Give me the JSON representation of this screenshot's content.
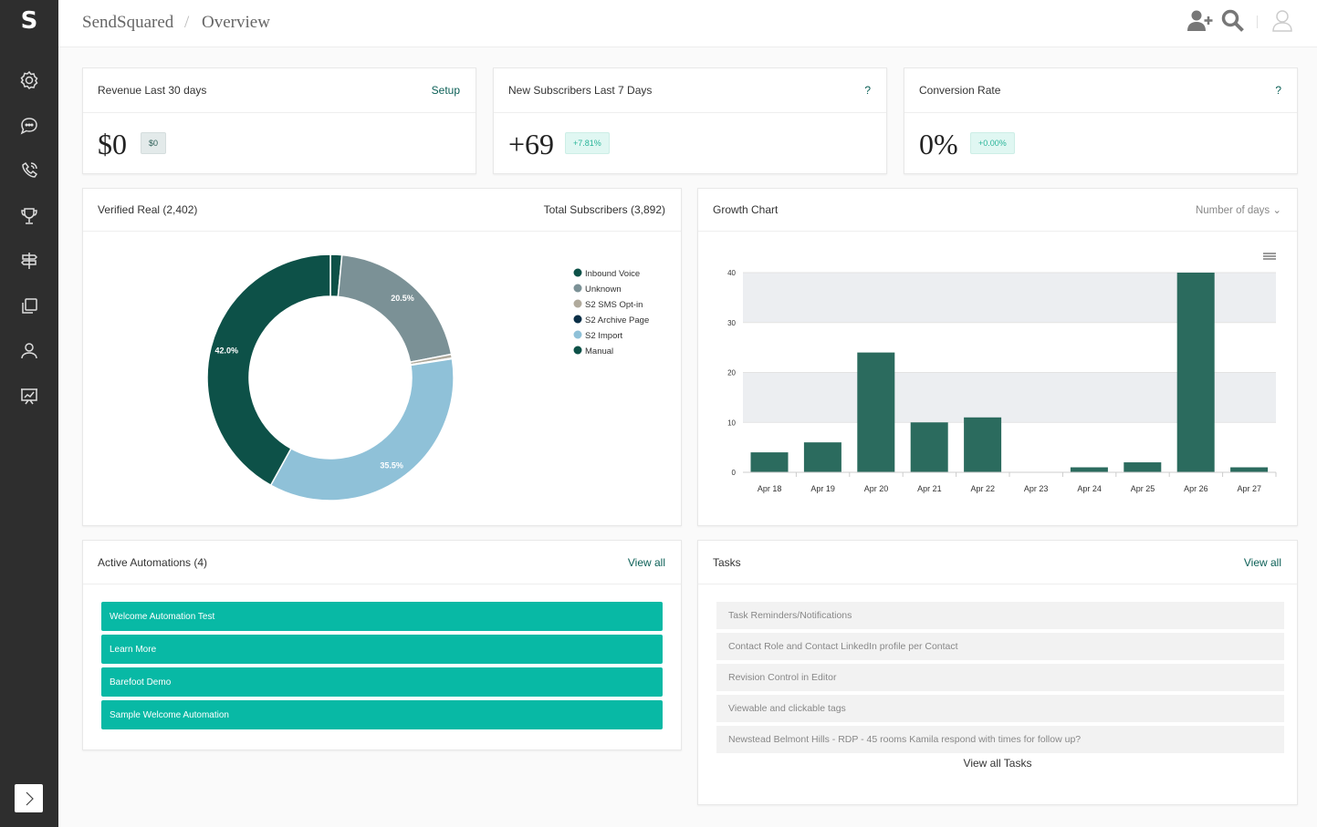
{
  "app": {
    "logo": "S",
    "brand": "SendSquared",
    "page": "Overview"
  },
  "header": {
    "icons": [
      "add-user-icon",
      "search-icon",
      "user-avatar-icon"
    ]
  },
  "sidebar": {
    "icons": [
      "gear-icon",
      "chat-icon",
      "phone-icon",
      "trophy-icon",
      "signpost-icon",
      "copy-icon",
      "user-icon",
      "presentation-chart-icon"
    ],
    "expand": "chevron-right-icon"
  },
  "stats": [
    {
      "title": "Revenue Last 30 days",
      "action": "Setup",
      "value": "$0",
      "badge": "$0"
    },
    {
      "title": "New Subscribers Last 7 Days",
      "action": "?",
      "value": "+69",
      "badge": "+7.81%"
    },
    {
      "title": "Conversion Rate",
      "action": "?",
      "value": "0%",
      "badge": "+0.00%"
    }
  ],
  "donut": {
    "title": "Verified Real (2,402)",
    "right": "Total Subscribers (3,892)"
  },
  "growth": {
    "title": "Growth Chart",
    "select": "Number of days"
  },
  "chart_data": [
    {
      "type": "pie",
      "subtype": "donut",
      "legend": "top-right",
      "labels": [
        "Inbound Voice",
        "Unknown",
        "S2 SMS Opt-in",
        "S2 Archive Page",
        "S2 Import",
        "Manual"
      ],
      "values": [
        1.5,
        20.5,
        0.5,
        0.1,
        35.5,
        42.0
      ],
      "data_labels": [
        "",
        "20.5%",
        "",
        "",
        "35.5%",
        "42.0%"
      ],
      "colors": [
        "#0d5148",
        "#7b9196",
        "#b0aa9c",
        "#0b2f47",
        "#8fc1d8",
        "#0d5148"
      ]
    },
    {
      "type": "bar",
      "categories": [
        "Apr 18",
        "Apr 19",
        "Apr 20",
        "Apr 21",
        "Apr 22",
        "Apr 23",
        "Apr 24",
        "Apr 25",
        "Apr 26",
        "Apr 27"
      ],
      "values": [
        4,
        6,
        24,
        10,
        11,
        0,
        1,
        2,
        40,
        1
      ],
      "ylim": [
        0,
        40
      ],
      "yticks": [
        0,
        10,
        20,
        30,
        40
      ],
      "color": "#2b6b5e",
      "grid": true
    }
  ],
  "automations": {
    "title": "Active Automations (4)",
    "action": "View all",
    "items": [
      "Welcome Automation Test",
      "Learn More",
      "Barefoot Demo",
      "Sample Welcome Automation"
    ]
  },
  "tasks": {
    "title": "Tasks",
    "action": "View all",
    "items": [
      "Task Reminders/Notifications",
      "Contact Role and Contact LinkedIn profile per Contact",
      "Revision Control in Editor",
      "Viewable and clickable tags",
      "Newstead Belmont Hills - RDP - 45 rooms Kamila respond with times for follow up?"
    ],
    "footer": "View all Tasks"
  }
}
